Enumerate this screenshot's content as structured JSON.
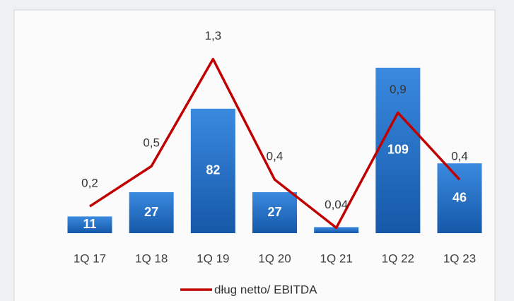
{
  "chart_data": {
    "type": "bar",
    "categories": [
      "1Q 17",
      "1Q 18",
      "1Q 19",
      "1Q 20",
      "1Q 21",
      "1Q 22",
      "1Q 23"
    ],
    "ylim": [
      0,
      135
    ],
    "y2lim": [
      0,
      1.53
    ],
    "series": [
      {
        "name": null,
        "type": "bar",
        "color": "#1f6fc5",
        "values": [
          11,
          27,
          82,
          27,
          4,
          109,
          46
        ]
      },
      {
        "name": "dług netto/ EBITDA",
        "type": "line",
        "axis": "y2",
        "color": "#c00000",
        "values": [
          0.2,
          0.5,
          1.3,
          0.4,
          0.04,
          0.9,
          0.4
        ],
        "value_labels": [
          "0,2",
          "0,5",
          "1,3",
          "0,4",
          "0,04",
          "0,9",
          "0,4"
        ]
      }
    ]
  }
}
